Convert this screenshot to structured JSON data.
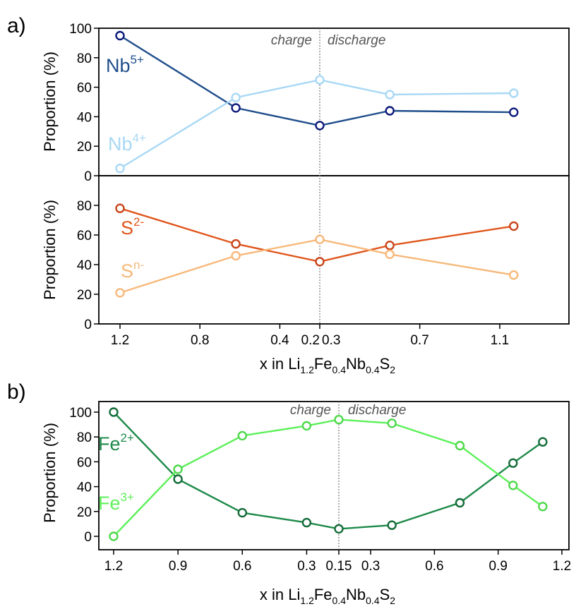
{
  "chart_data": [
    {
      "panel_label": "a)",
      "type": "line",
      "subplots": [
        {
          "ylabel": "Proportion (%)",
          "ylim": [
            0,
            100
          ],
          "yticks": [
            0,
            20,
            40,
            60,
            80,
            100
          ],
          "series": [
            {
              "name": "Nb5+",
              "label_base": "Nb",
              "label_sup": "5+",
              "color": "#1f4e8c",
              "marker_color": "#0d1a7a",
              "values": [
                95,
                46,
                34,
                44,
                43
              ]
            },
            {
              "name": "Nb4+",
              "label_base": "Nb",
              "label_sup": "4+",
              "color": "#a8d8f5",
              "marker_color": "#a8d8f5",
              "values": [
                5,
                53,
                65,
                55,
                56
              ]
            }
          ]
        },
        {
          "ylabel": "Proportion (%)",
          "ylim": [
            0,
            100
          ],
          "yticks": [
            0,
            20,
            40,
            60,
            80
          ],
          "series": [
            {
              "name": "S2-",
              "label_base": "S",
              "label_sup": "2-",
              "color": "#e0561c",
              "marker_color": "#c8441a",
              "values": [
                78,
                54,
                42,
                53,
                66
              ]
            },
            {
              "name": "Sn-",
              "label_base": "S",
              "label_sup": "n-",
              "color": "#f7b87a",
              "marker_color": "#f7b87a",
              "values": [
                21,
                46,
                57,
                47,
                33
              ]
            }
          ]
        }
      ],
      "x_positions": [
        1.2,
        0.62,
        0.2,
        0.55,
        1.17
      ],
      "x_phase": [
        "charge",
        "charge",
        "split",
        "discharge",
        "discharge"
      ],
      "xticks": [
        "1.2",
        "0.8",
        "0.4",
        "0.2",
        "0.3",
        "0.7",
        "1.1"
      ],
      "xlabel": {
        "base": "x in Li",
        "sub1": "1.2",
        "mid1": "Fe",
        "sub2": "0.4",
        "mid2": "Nb",
        "sub3": "0.4",
        "mid3": "S",
        "sub4": "2"
      },
      "annotations": {
        "charge": "charge",
        "discharge": "discharge"
      }
    },
    {
      "panel_label": "b)",
      "type": "line",
      "ylabel": "Proportion (%)",
      "ylim": [
        -5,
        110
      ],
      "yticks": [
        0,
        20,
        40,
        60,
        80,
        100
      ],
      "x_positions": [
        1.2,
        0.9,
        0.6,
        0.3,
        0.15,
        0.4,
        0.72,
        0.97,
        1.11
      ],
      "x_phase": [
        "charge",
        "charge",
        "charge",
        "charge",
        "split",
        "discharge",
        "discharge",
        "discharge",
        "discharge"
      ],
      "series": [
        {
          "name": "Fe2+",
          "label_base": "Fe",
          "label_sup": "2+",
          "color": "#1e8a4a",
          "marker_color": "#136b38",
          "values": [
            100,
            46,
            19,
            11,
            6,
            9,
            27,
            59,
            76
          ]
        },
        {
          "name": "Fe3+",
          "label_base": "Fe",
          "label_sup": "3+",
          "color": "#5df05a",
          "marker_color": "#4fd84c",
          "values": [
            0,
            54,
            81,
            89,
            94,
            91,
            73,
            41,
            24
          ]
        }
      ],
      "xticks": [
        "1.2",
        "0.9",
        "0.6",
        "0.3",
        "0.15",
        "0.3",
        "0.6",
        "0.9",
        "1.2"
      ],
      "xlabel": {
        "base": "x in Li",
        "sub1": "1.2",
        "mid1": "Fe",
        "sub2": "0.4",
        "mid2": "Nb",
        "sub3": "0.4",
        "mid3": "S",
        "sub4": "2"
      },
      "annotations": {
        "charge": "charge",
        "discharge": "discharge"
      }
    }
  ]
}
